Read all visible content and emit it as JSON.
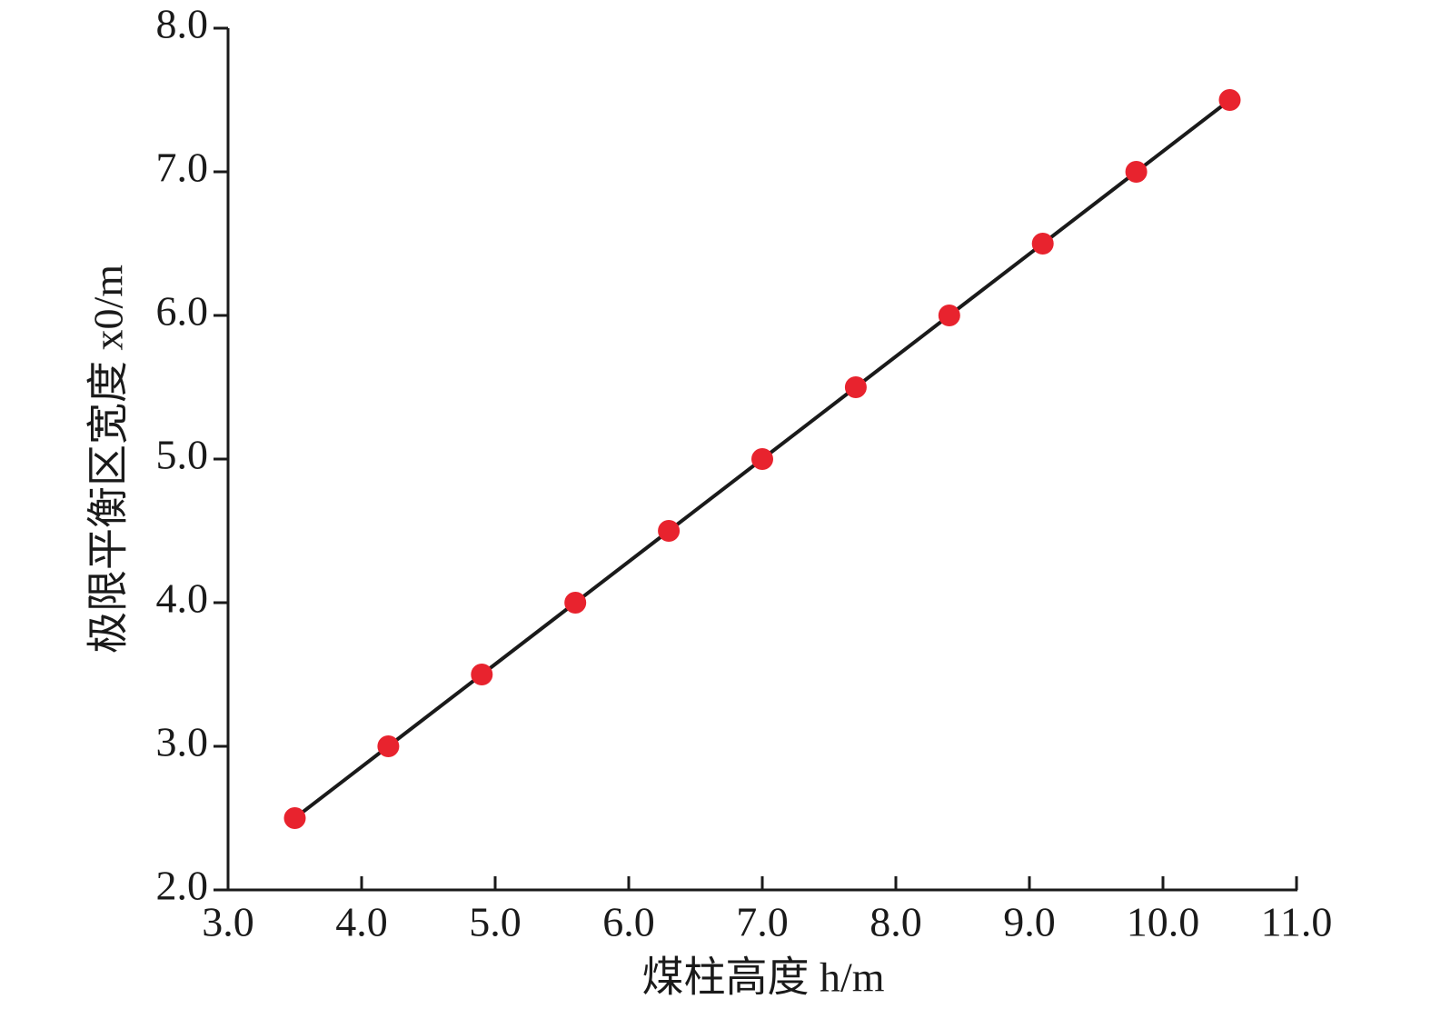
{
  "chart_data": {
    "type": "line",
    "xlabel": "煤柱高度 h/m",
    "ylabel": "极限平衡区宽度 x0/m",
    "x": [
      3.5,
      4.2,
      4.9,
      5.6,
      6.3,
      7.0,
      7.7,
      8.4,
      9.1,
      9.8,
      10.5
    ],
    "series": [
      {
        "color": "#e8232e",
        "line_color": "#1a1a1a",
        "values": [
          2.5,
          3.0,
          3.5,
          4.0,
          4.5,
          5.0,
          5.5,
          6.0,
          6.5,
          7.0,
          7.5
        ]
      }
    ],
    "xlim": [
      3,
      11
    ],
    "xticks": [
      {
        "value": 3,
        "label": "3.0"
      },
      {
        "value": 4,
        "label": "4.0"
      },
      {
        "value": 5,
        "label": "5.0"
      },
      {
        "value": 6,
        "label": "6.0"
      },
      {
        "value": 7,
        "label": "7.0"
      },
      {
        "value": 8,
        "label": "8.0"
      },
      {
        "value": 9,
        "label": "9.0"
      },
      {
        "value": 10,
        "label": "10.0"
      },
      {
        "value": 11,
        "label": "11.0"
      }
    ],
    "ylim": [
      2,
      8
    ],
    "yticks": [
      {
        "value": 2,
        "label": "2.0"
      },
      {
        "value": 3,
        "label": "3.0"
      },
      {
        "value": 4,
        "label": "4.0"
      },
      {
        "value": 5,
        "label": "5.0"
      },
      {
        "value": 6,
        "label": "6.0"
      },
      {
        "value": 7,
        "label": "7.0"
      },
      {
        "value": 8,
        "label": "8.0"
      }
    ],
    "grid": false
  }
}
